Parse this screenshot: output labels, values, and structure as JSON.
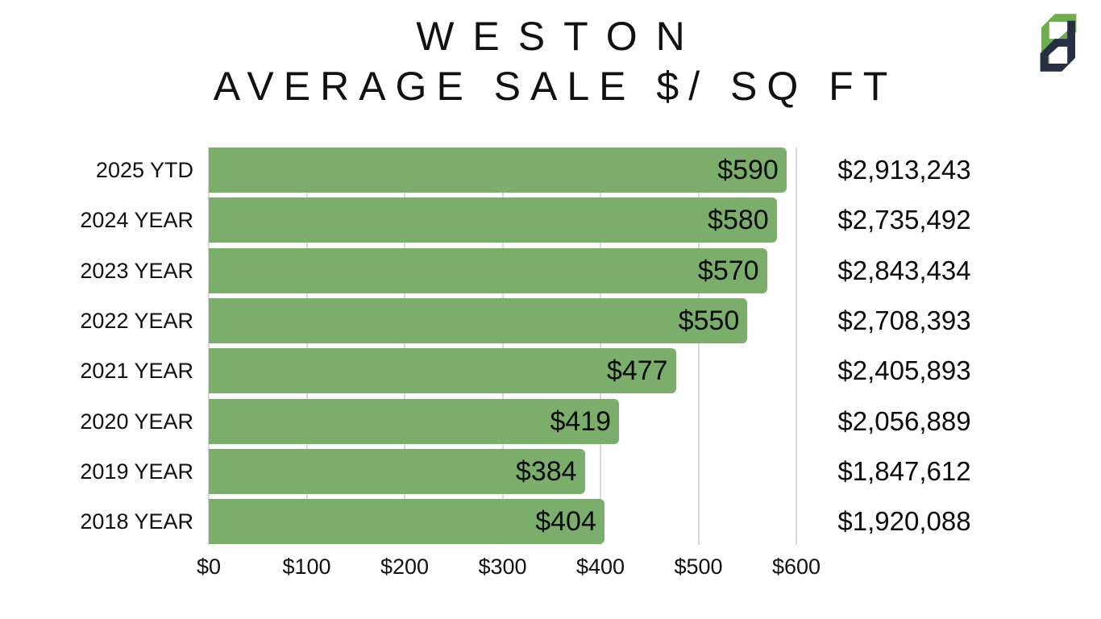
{
  "header": {
    "title_line1": "WESTON",
    "title_line2": "AVERAGE SALE $/ SQ FT"
  },
  "logo": {
    "name": "pd-monogram",
    "green": "#6fae4e",
    "navy": "#272f45"
  },
  "chart_data": {
    "type": "bar",
    "orientation": "horizontal",
    "title": "WESTON AVERAGE SALE $/ SQ FT",
    "categories": [
      "2025 YTD",
      "2024 YEAR",
      "2023 YEAR",
      "2022 YEAR",
      "2021 YEAR",
      "2020 YEAR",
      "2019 YEAR",
      "2018 YEAR"
    ],
    "values": [
      590,
      580,
      570,
      550,
      477,
      419,
      384,
      404
    ],
    "bar_labels": [
      "$590",
      "$580",
      "$570",
      "$550",
      "$477",
      "$419",
      "$384",
      "$404"
    ],
    "avg_sale_prices": [
      "$2,913,243",
      "$2,735,492",
      "$2,843,434",
      "$2,708,393",
      "$2,405,893",
      "$2,056,889",
      "$1,847,612",
      "$1,920,088"
    ],
    "x_ticks": [
      {
        "label": "$0",
        "value": 0
      },
      {
        "label": "$100",
        "value": 100
      },
      {
        "label": "$200",
        "value": 200
      },
      {
        "label": "$300",
        "value": 300
      },
      {
        "label": "$400",
        "value": 400
      },
      {
        "label": "$500",
        "value": 500
      },
      {
        "label": "$600",
        "value": 600
      }
    ],
    "xlim": [
      0,
      600
    ],
    "bar_color": "#7cae6b",
    "gridline_color": "#d9d9d9",
    "grid": "vertical",
    "legend_position": "none"
  }
}
